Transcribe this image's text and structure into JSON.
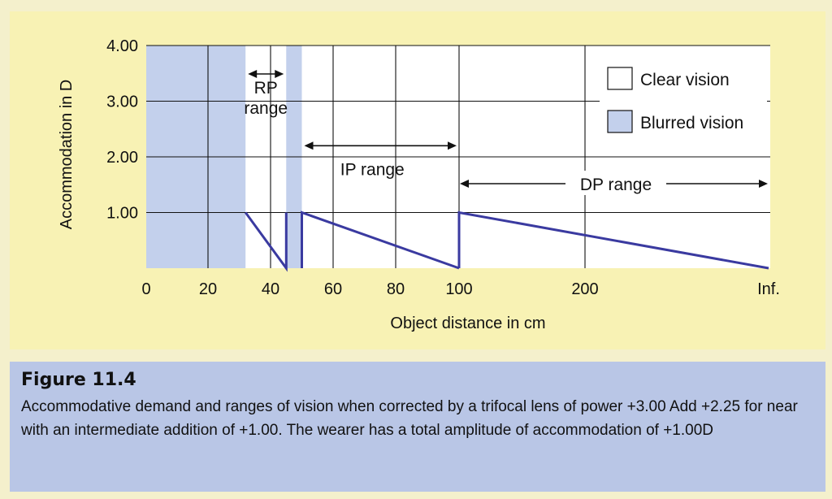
{
  "figure": {
    "heading": "Figure 11.4",
    "caption": "Accommodative demand and ranges of vision when corrected by a trifocal lens of power +3.00 Add +2.25 for near with an intermediate addition of +1.00. The wearer has a total amplitude of accommodation of +1.00D"
  },
  "colors": {
    "panel_bg": "#f8f2b4",
    "plot_bg": "#ffffff",
    "blur_fill": "#c3d0ec",
    "demand_line": "#3a3aa0",
    "caption_bg": "#b9c6e6"
  },
  "chart_data": {
    "type": "line",
    "title": "",
    "xlabel": "Object distance in cm",
    "ylabel": "Accommodation in D",
    "x_ticks": [
      {
        "label": "0",
        "value": 0
      },
      {
        "label": "20",
        "value": 20
      },
      {
        "label": "40",
        "value": 40
      },
      {
        "label": "60",
        "value": 60
      },
      {
        "label": "80",
        "value": 80
      },
      {
        "label": "100",
        "value": 100
      },
      {
        "label": "200",
        "value": 200
      },
      {
        "label": "Inf.",
        "value": "inf"
      }
    ],
    "y_ticks": [
      {
        "label": "1.00",
        "value": 1
      },
      {
        "label": "2.00",
        "value": 2
      },
      {
        "label": "3.00",
        "value": 3
      },
      {
        "label": "4.00",
        "value": 4
      }
    ],
    "ylim": [
      0,
      4
    ],
    "grid": true,
    "series": [
      {
        "segment": "near",
        "points": [
          [
            32,
            1.0
          ],
          [
            45,
            0.0
          ],
          [
            45,
            1.0
          ]
        ]
      },
      {
        "segment": "intermediate",
        "points": [
          [
            50,
            0.0
          ],
          [
            50,
            1.0
          ],
          [
            100,
            0.0
          ]
        ]
      },
      {
        "segment": "distance",
        "points": [
          [
            100,
            0.0
          ],
          [
            100,
            1.0
          ],
          [
            "inf",
            0.0
          ]
        ]
      }
    ],
    "blurred_regions": [
      {
        "from": 0,
        "to": 32
      },
      {
        "from": 45,
        "to": 50
      }
    ],
    "range_annotations": [
      {
        "label_lines": [
          "RP",
          "range"
        ],
        "from": 32,
        "to": 45,
        "y": 3.5
      },
      {
        "label_lines": [
          "IP range"
        ],
        "from": 50,
        "to": 100,
        "y": 2.2
      },
      {
        "label_lines": [
          "DP range"
        ],
        "from": 100,
        "to": "inf",
        "y": 1.5
      }
    ],
    "legend": {
      "placement": "top-right",
      "entries": [
        {
          "label": "Clear vision",
          "kind": "clear"
        },
        {
          "label": "Blurred vision",
          "kind": "blurred"
        }
      ]
    }
  }
}
